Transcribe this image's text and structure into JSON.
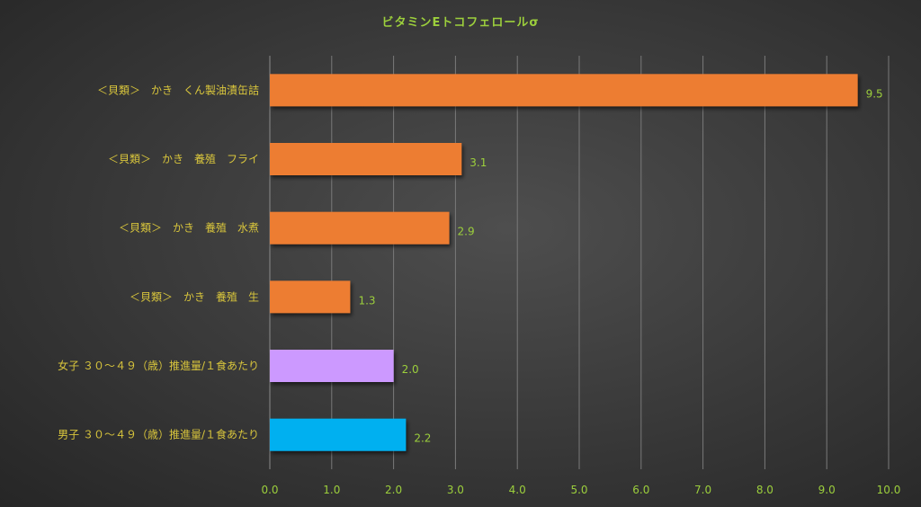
{
  "chart_data": {
    "type": "bar",
    "orientation": "horizontal",
    "title": "ビタミンEトコフェロールσ",
    "categories": [
      "＜貝類＞　かき　くん製油漬缶詰",
      "＜貝類＞　かき　養殖　フライ",
      "＜貝類＞　かき　養殖　水煮",
      "＜貝類＞　かき　養殖　生",
      "女子 ３０～４９（歳）推進量/１食あたり",
      "男子 ３０～４９（歳）推進量/１食あたり"
    ],
    "values": [
      9.5,
      3.1,
      2.9,
      1.3,
      2.0,
      2.2
    ],
    "value_labels": [
      "9.5",
      "3.1",
      "2.9",
      "1.3",
      "2.0",
      "2.2"
    ],
    "bar_colors": [
      "#ed7d31",
      "#ed7d31",
      "#ed7d31",
      "#ed7d31",
      "#cc99ff",
      "#00b0f0"
    ],
    "xlim": [
      0,
      10
    ],
    "xticks": [
      "0.0",
      "1.0",
      "2.0",
      "3.0",
      "4.0",
      "5.0",
      "6.0",
      "7.0",
      "8.0",
      "9.0",
      "10.0"
    ],
    "grid": "vertical",
    "legend": "none",
    "colors": {
      "title": "#9ccf3c",
      "category_labels": "#d8c53c",
      "tick_labels": "#9ccf3c",
      "data_labels": "#9ccf3c",
      "gridlines": "#7a7a7a"
    }
  }
}
